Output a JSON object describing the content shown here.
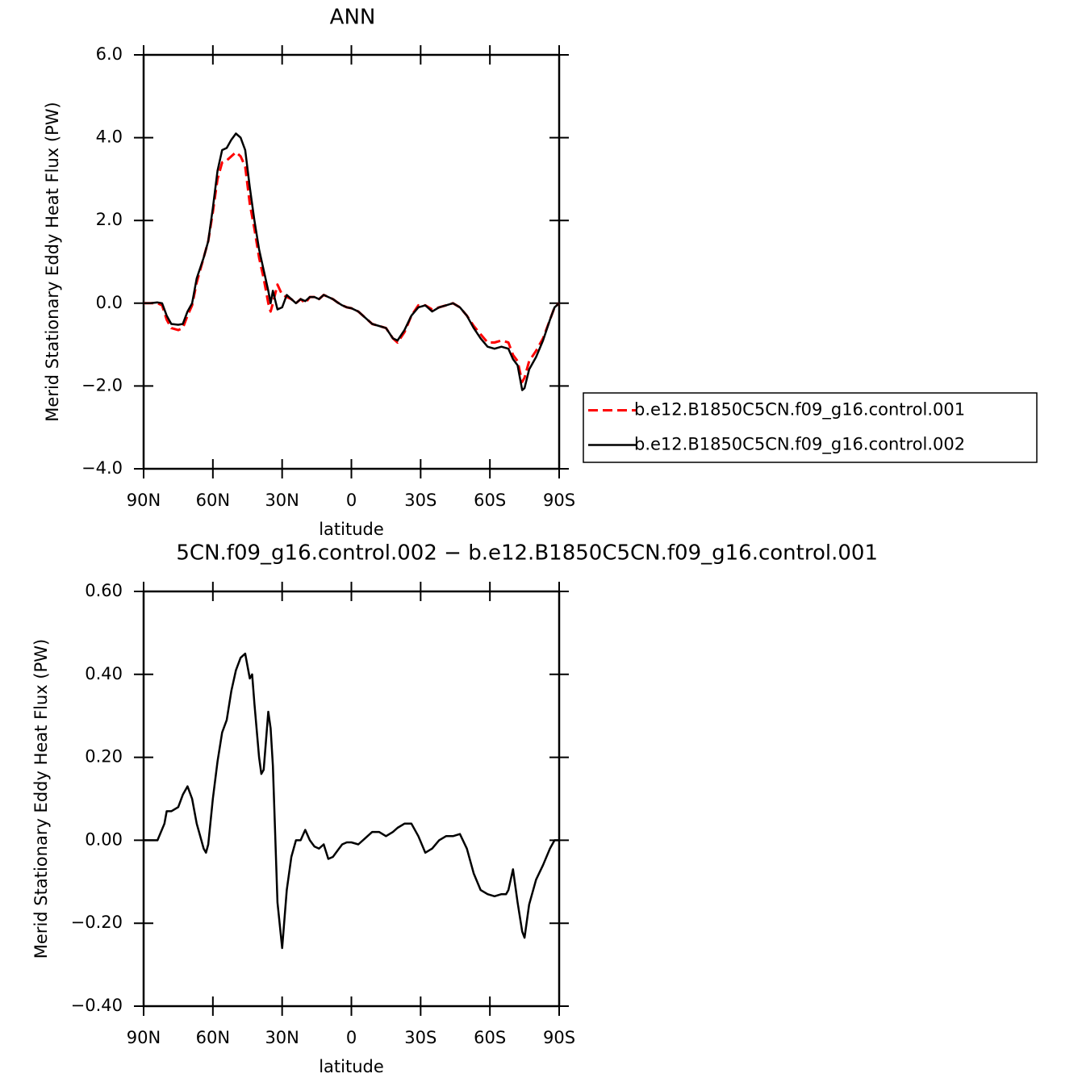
{
  "chart_data": [
    {
      "type": "line",
      "title": "ANN",
      "xlabel": "latitude",
      "ylabel": "Merid Stationary Eddy Heat Flux (PW)",
      "x": [
        90,
        87,
        84,
        82,
        80,
        78,
        75,
        73,
        71,
        69,
        67,
        64,
        62,
        60,
        58,
        56,
        54,
        52,
        50,
        48,
        46,
        44,
        42,
        40,
        38,
        36,
        35,
        34,
        32,
        30,
        28,
        26,
        24,
        22,
        20,
        18,
        16,
        14,
        12,
        10,
        8,
        6,
        4,
        2,
        0,
        -3,
        -6,
        -9,
        -12,
        -15,
        -18,
        -20,
        -23,
        -26,
        -29,
        -32,
        -35,
        -38,
        -41,
        -44,
        -47,
        -50,
        -53,
        -56,
        -59,
        -62,
        -65,
        -68,
        -70,
        -72,
        -74,
        -75,
        -77,
        -80,
        -83,
        -86,
        -88,
        -90
      ],
      "series": [
        {
          "name": "b.e12.B1850C5CN.f09_g16.control.001",
          "color": "#ff0000",
          "dashed": true,
          "values": [
            0,
            0,
            0,
            -0.05,
            -0.4,
            -0.6,
            -0.65,
            -0.6,
            -0.3,
            -0.05,
            0.5,
            1.1,
            1.5,
            2.2,
            3.0,
            3.4,
            3.45,
            3.55,
            3.65,
            3.55,
            3.3,
            2.4,
            1.8,
            1.1,
            0.6,
            0.0,
            -0.2,
            0.0,
            0.45,
            0.2,
            0.15,
            0.1,
            0,
            0.1,
            0.0,
            0.15,
            0.15,
            0.1,
            0.2,
            0.15,
            0.1,
            0.02,
            -0.05,
            -0.1,
            -0.12,
            -0.2,
            -0.35,
            -0.5,
            -0.55,
            -0.6,
            -0.85,
            -0.95,
            -0.7,
            -0.3,
            -0.05,
            -0.05,
            -0.15,
            -0.1,
            -0.05,
            0,
            -0.1,
            -0.3,
            -0.55,
            -0.75,
            -0.95,
            -0.95,
            -0.9,
            -0.95,
            -1.25,
            -1.4,
            -1.9,
            -1.8,
            -1.4,
            -1.15,
            -0.85,
            -0.4,
            -0.1,
            0
          ]
        },
        {
          "name": "b.e12.B1850C5CN.f09_g16.control.002",
          "color": "#000000",
          "dashed": false,
          "values": [
            0,
            0,
            0.02,
            0,
            -0.3,
            -0.5,
            -0.52,
            -0.5,
            -0.2,
            0,
            0.6,
            1.1,
            1.5,
            2.3,
            3.2,
            3.7,
            3.75,
            3.95,
            4.1,
            4.0,
            3.7,
            2.8,
            2.0,
            1.3,
            0.8,
            0.3,
            0.0,
            0.3,
            -0.15,
            -0.1,
            0.2,
            0.1,
            0,
            0.1,
            0.05,
            0.15,
            0.15,
            0.1,
            0.2,
            0.15,
            0.1,
            0.02,
            -0.05,
            -0.1,
            -0.12,
            -0.2,
            -0.35,
            -0.5,
            -0.55,
            -0.6,
            -0.85,
            -0.9,
            -0.65,
            -0.3,
            -0.1,
            -0.05,
            -0.2,
            -0.1,
            -0.05,
            0,
            -0.1,
            -0.3,
            -0.6,
            -0.85,
            -1.05,
            -1.1,
            -1.05,
            -1.1,
            -1.35,
            -1.5,
            -2.1,
            -2.05,
            -1.6,
            -1.3,
            -0.9,
            -0.4,
            -0.1,
            0
          ]
        }
      ],
      "xlim": [
        90,
        -90
      ],
      "xticks": [
        {
          "value": 90,
          "label": "90N"
        },
        {
          "value": 60,
          "label": "60N"
        },
        {
          "value": 30,
          "label": "30N"
        },
        0,
        {
          "value": -30,
          "label": "30S"
        },
        {
          "value": -60,
          "label": "60S"
        },
        {
          "value": -90,
          "label": "90S"
        }
      ],
      "ylim": [
        -4,
        6
      ],
      "yticks": [
        {
          "value": 6,
          "label": "6.0"
        },
        {
          "value": 4,
          "label": "4.0"
        },
        {
          "value": 2,
          "label": "2.0"
        },
        {
          "value": 0,
          "label": "0.0"
        },
        {
          "value": -2,
          "label": "−2.0"
        },
        {
          "value": -4,
          "label": "−4.0"
        }
      ],
      "legend": "right"
    },
    {
      "type": "line",
      "title": "5CN.f09_g16.control.002 − b.e12.B1850C5CN.f09_g16.control.001",
      "xlabel": "latitude",
      "ylabel": "Merid Stationary Eddy Heat Flux (PW)",
      "x": [
        90,
        87,
        84,
        81,
        80,
        78,
        75,
        73,
        71,
        69,
        67,
        66,
        64,
        63,
        62,
        60,
        58,
        56,
        54,
        52,
        50,
        48,
        46,
        44,
        43,
        42,
        40,
        39,
        38,
        36,
        35,
        34,
        32,
        30,
        28,
        26,
        24,
        22,
        20,
        18,
        16,
        14,
        12,
        10,
        8,
        6,
        4,
        2,
        0,
        -3,
        -6,
        -9,
        -12,
        -15,
        -18,
        -20,
        -23,
        -26,
        -29,
        -32,
        -35,
        -38,
        -41,
        -44,
        -47,
        -50,
        -53,
        -56,
        -59,
        -62,
        -65,
        -67,
        -68,
        -70,
        -72,
        -74,
        -75,
        -77,
        -80,
        -83,
        -86,
        -88,
        -90
      ],
      "series": [
        {
          "color": "#000000",
          "dashed": false,
          "values": [
            0,
            0,
            0,
            0.04,
            0.07,
            0.07,
            0.08,
            0.11,
            0.13,
            0.1,
            0.04,
            0.02,
            -0.02,
            -0.03,
            -0.01,
            0.1,
            0.19,
            0.26,
            0.29,
            0.36,
            0.41,
            0.44,
            0.45,
            0.39,
            0.4,
            0.33,
            0.2,
            0.16,
            0.17,
            0.31,
            0.27,
            0.18,
            -0.15,
            -0.26,
            -0.12,
            -0.04,
            0,
            0,
            0.025,
            0,
            -0.015,
            -0.02,
            -0.01,
            -0.045,
            -0.04,
            -0.025,
            -0.01,
            -0.005,
            -0.005,
            -0.01,
            0.005,
            0.02,
            0.02,
            0.01,
            0.02,
            0.03,
            0.04,
            0.04,
            0.01,
            -0.03,
            -0.02,
            0,
            0.01,
            0.01,
            0.015,
            -0.02,
            -0.08,
            -0.12,
            -0.13,
            -0.135,
            -0.13,
            -0.13,
            -0.12,
            -0.07,
            -0.15,
            -0.22,
            -0.235,
            -0.155,
            -0.095,
            -0.06,
            -0.02,
            0,
            0
          ]
        }
      ],
      "xlim": [
        90,
        -90
      ],
      "xticks": [
        {
          "value": 90,
          "label": "90N"
        },
        {
          "value": 60,
          "label": "60N"
        },
        {
          "value": 30,
          "label": "30N"
        },
        0,
        {
          "value": -30,
          "label": "30S"
        },
        {
          "value": -60,
          "label": "60S"
        },
        {
          "value": -90,
          "label": "90S"
        }
      ],
      "ylim": [
        -0.4,
        0.6
      ],
      "yticks": [
        {
          "value": 0.6,
          "label": "0.60"
        },
        {
          "value": 0.4,
          "label": "0.40"
        },
        {
          "value": 0.2,
          "label": "0.20"
        },
        {
          "value": 0,
          "label": "0.00"
        },
        {
          "value": -0.2,
          "label": "−0.20"
        },
        {
          "value": -0.4,
          "label": "−0.40"
        }
      ]
    }
  ]
}
